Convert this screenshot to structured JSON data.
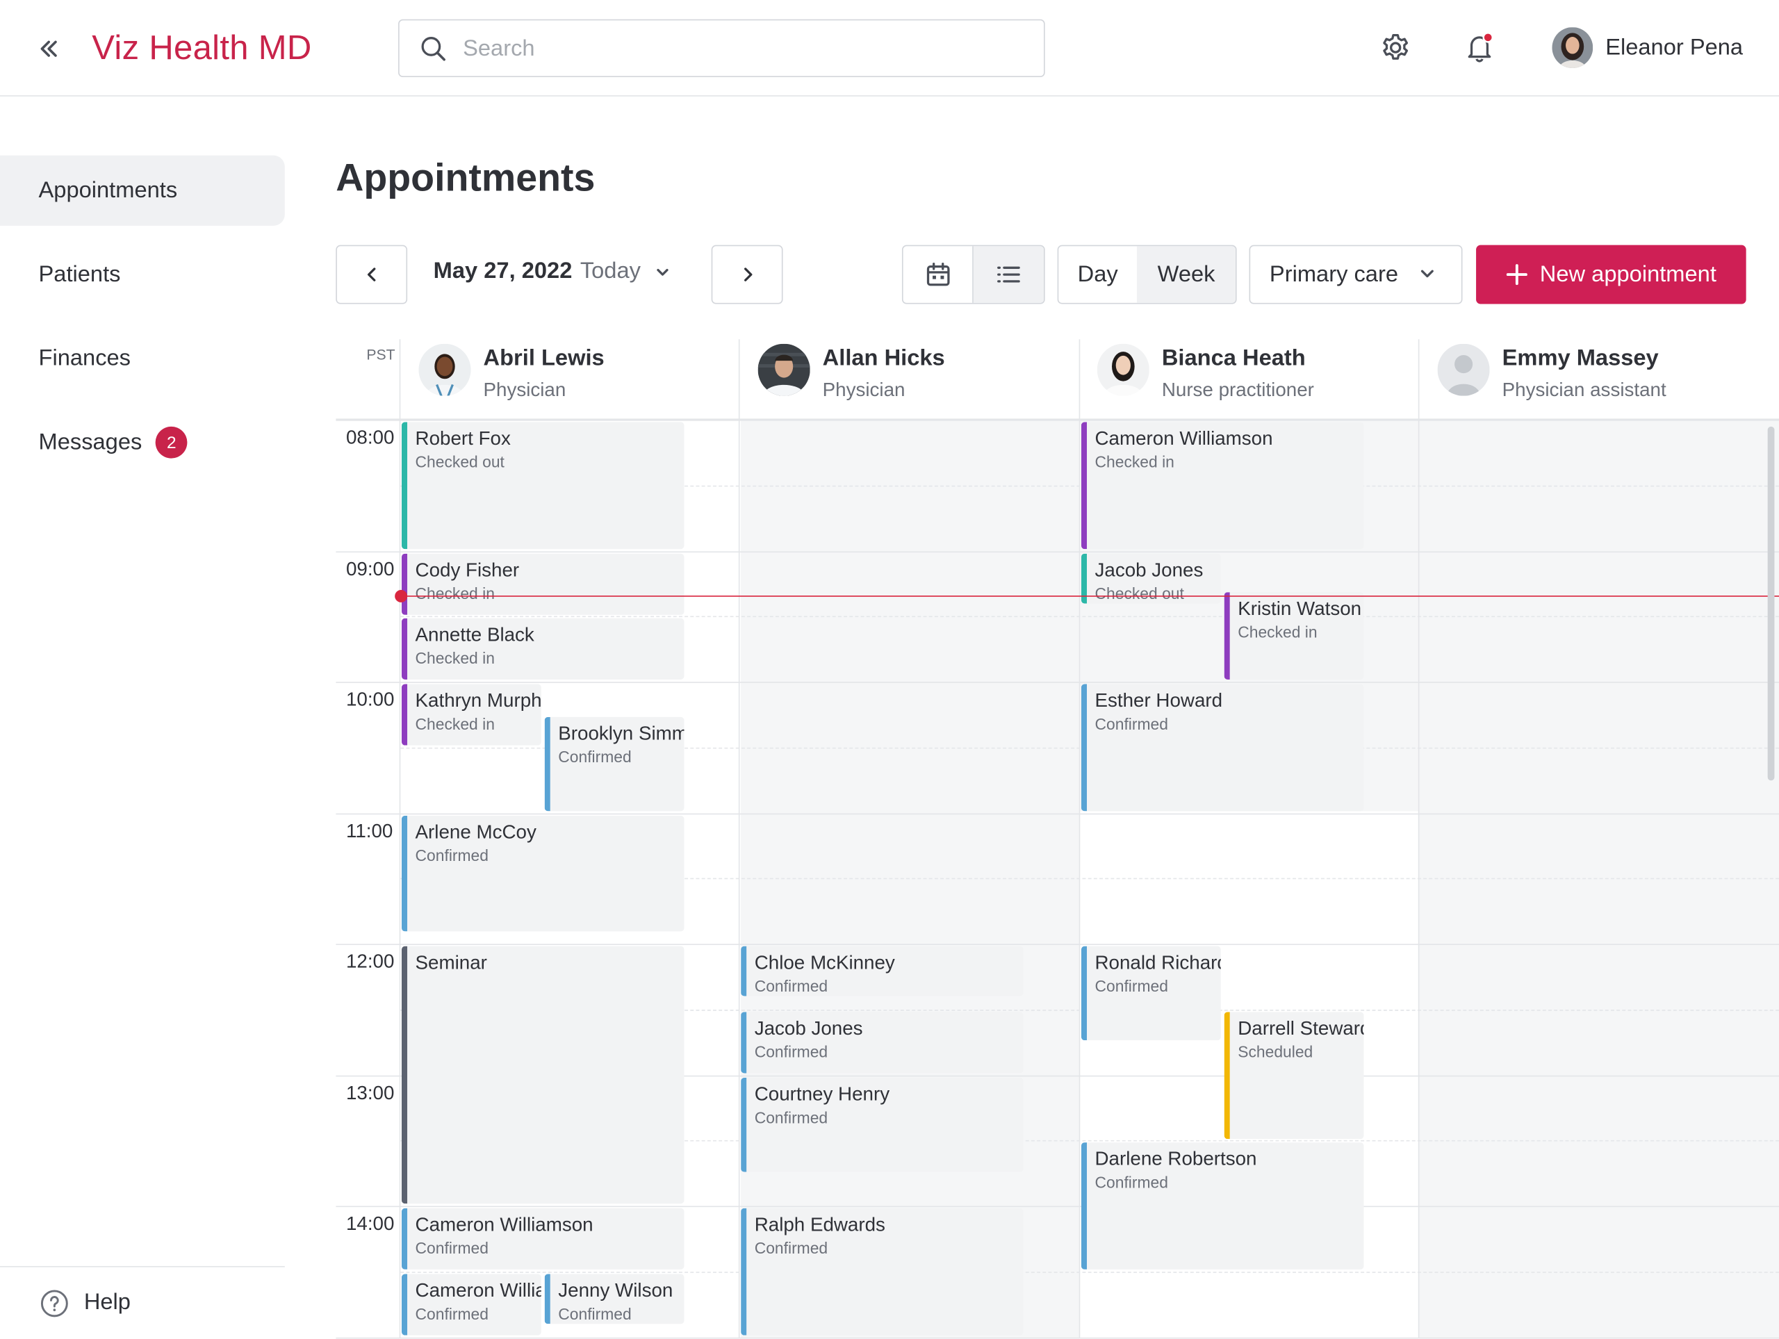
{
  "app": {
    "brand": "Viz Health MD",
    "accent": "#cf1f55"
  },
  "header": {
    "search_placeholder": "Search",
    "user_name": "Eleanor Pena",
    "icons": [
      "collapse-icon",
      "search-icon",
      "gear-icon",
      "bell-icon"
    ]
  },
  "sidebar": {
    "items": [
      {
        "label": "Appointments"
      },
      {
        "label": "Patients"
      },
      {
        "label": "Finances"
      },
      {
        "label": "Messages",
        "badge": "2"
      }
    ],
    "help": "Help"
  },
  "page": {
    "title": "Appointments"
  },
  "toolbar": {
    "date": "May 27, 2022",
    "today": "Today",
    "view_day": "Day",
    "view_week": "Week",
    "selected_view": "Day",
    "department": "Primary care",
    "new_appointment": "New appointment"
  },
  "calendar": {
    "timezone": "PST",
    "times": [
      "08:00",
      "09:00",
      "10:00",
      "11:00",
      "12:00",
      "13:00",
      "14:00"
    ],
    "staff": [
      {
        "name": "Abril Lewis",
        "role": "Physician"
      },
      {
        "name": "Allan Hicks",
        "role": "Physician"
      },
      {
        "name": "Bianca Heath",
        "role": "Nurse practitioner"
      },
      {
        "name": "Emmy Massey",
        "role": "Physician assistant"
      }
    ],
    "status_colors": {
      "Checked out": "#2cb7a8",
      "Checked in": "#8e3dbf",
      "Confirmed": "#58a3d4",
      "Scheduled": "#f2b705",
      "Event": "#5c6270"
    },
    "appointments": [
      {
        "name": "Robert Fox",
        "status": "Checked out",
        "col": 0,
        "start": "08:00",
        "end": "09:00",
        "lane": "full"
      },
      {
        "name": "Cody Fisher",
        "status": "Checked in",
        "col": 0,
        "start": "09:00",
        "end": "09:30",
        "lane": "full"
      },
      {
        "name": "Annette Black",
        "status": "Checked in",
        "col": 0,
        "start": "09:30",
        "end": "10:00",
        "lane": "full"
      },
      {
        "name": "Kathryn Murphy",
        "status": "Checked in",
        "col": 0,
        "start": "10:00",
        "end": "10:30",
        "lane": "left"
      },
      {
        "name": "Brooklyn Simmons",
        "status": "Confirmed",
        "col": 0,
        "start": "10:15",
        "end": "11:00",
        "lane": "right"
      },
      {
        "name": "Arlene McCoy",
        "status": "Confirmed",
        "col": 0,
        "start": "11:00",
        "end": "11:55",
        "lane": "full"
      },
      {
        "name": "Seminar",
        "status": "",
        "col": 0,
        "start": "12:00",
        "end": "14:00",
        "lane": "full",
        "kind": "Event"
      },
      {
        "name": "Cameron Williamson",
        "status": "Confirmed",
        "col": 0,
        "start": "14:00",
        "end": "14:30",
        "lane": "full"
      },
      {
        "name": "Cameron Williamson",
        "status": "Confirmed",
        "col": 0,
        "start": "14:30",
        "end": "15:00",
        "lane": "left"
      },
      {
        "name": "Jenny Wilson",
        "status": "Confirmed",
        "col": 0,
        "start": "14:30",
        "end": "14:55",
        "lane": "right"
      },
      {
        "name": "Chloe McKinney",
        "status": "Confirmed",
        "col": 1,
        "start": "12:00",
        "end": "12:25",
        "lane": "full"
      },
      {
        "name": "Jacob Jones",
        "status": "Confirmed",
        "col": 1,
        "start": "12:30",
        "end": "13:00",
        "lane": "full"
      },
      {
        "name": "Courtney Henry",
        "status": "Confirmed",
        "col": 1,
        "start": "13:00",
        "end": "13:45",
        "lane": "full"
      },
      {
        "name": "Ralph Edwards",
        "status": "Confirmed",
        "col": 1,
        "start": "14:00",
        "end": "15:00",
        "lane": "full"
      },
      {
        "name": "Cameron Williamson",
        "status": "Checked in",
        "col": 2,
        "start": "08:00",
        "end": "09:00",
        "lane": "full"
      },
      {
        "name": "Jacob Jones",
        "status": "Checked out",
        "col": 2,
        "start": "09:00",
        "end": "09:25",
        "lane": "left"
      },
      {
        "name": "Kristin Watson",
        "status": "Checked in",
        "col": 2,
        "start": "09:18",
        "end": "10:00",
        "lane": "right"
      },
      {
        "name": "Esther Howard",
        "status": "Confirmed",
        "col": 2,
        "start": "10:00",
        "end": "11:00",
        "lane": "full"
      },
      {
        "name": "Ronald Richards",
        "status": "Confirmed",
        "col": 2,
        "start": "12:00",
        "end": "12:45",
        "lane": "left"
      },
      {
        "name": "Darrell Steward",
        "status": "Scheduled",
        "col": 2,
        "start": "12:30",
        "end": "13:30",
        "lane": "right"
      },
      {
        "name": "Darlene Robertson",
        "status": "Confirmed",
        "col": 2,
        "start": "13:30",
        "end": "14:30",
        "lane": "full"
      }
    ],
    "current_time": "09:20"
  }
}
